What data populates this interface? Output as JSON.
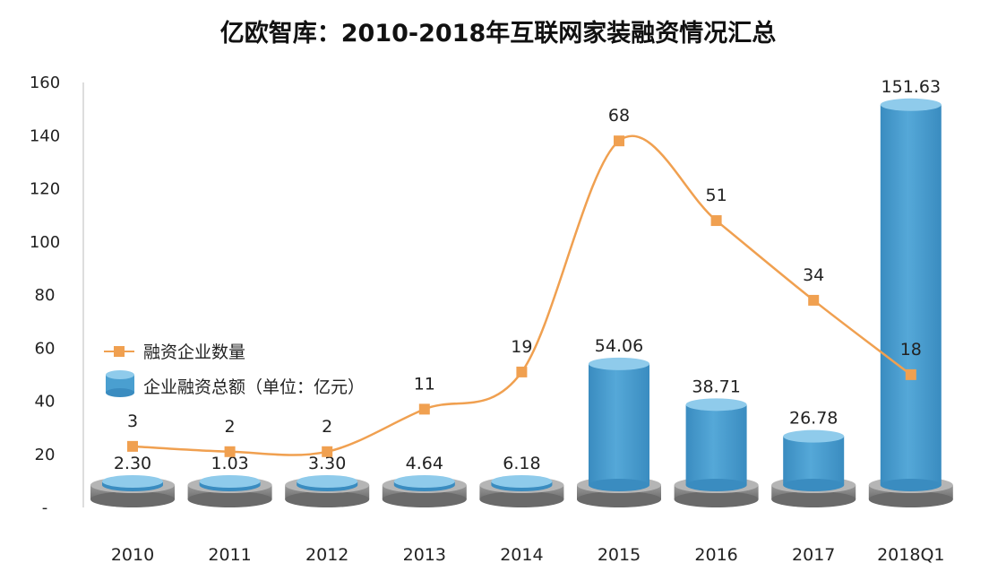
{
  "chart_data": {
    "type": "bar",
    "title": "亿欧智库：2010-2018年互联网家装融资情况汇总",
    "categories": [
      "2010",
      "2011",
      "2012",
      "2013",
      "2014",
      "2015",
      "2016",
      "2017",
      "2018Q1"
    ],
    "yticks": [
      "-",
      "20",
      "40",
      "60",
      "80",
      "100",
      "120",
      "140",
      "160"
    ],
    "ylim": [
      0,
      160
    ],
    "grid": false,
    "legend_position": "left-middle",
    "series": [
      {
        "name": "企业融资总额（单位：亿元）",
        "type": "bar",
        "style": "cylinder",
        "color": "#4a9fd0",
        "values": [
          2.3,
          1.03,
          3.3,
          4.64,
          6.18,
          54.06,
          38.71,
          26.78,
          151.63
        ],
        "labels": [
          "2.30",
          "1.03",
          "3.30",
          "4.64",
          "6.18",
          "54.06",
          "38.71",
          "26.78",
          "151.63"
        ]
      },
      {
        "name": "融资企业数量",
        "type": "line",
        "color": "#f0a050",
        "values": [
          3,
          2,
          2,
          11,
          19,
          68,
          51,
          34,
          18
        ],
        "plotted_values": [
          23,
          21,
          21,
          37,
          51,
          138,
          108,
          78,
          50
        ],
        "labels": [
          "3",
          "2",
          "2",
          "11",
          "19",
          "68",
          "51",
          "34",
          "18"
        ]
      }
    ]
  }
}
